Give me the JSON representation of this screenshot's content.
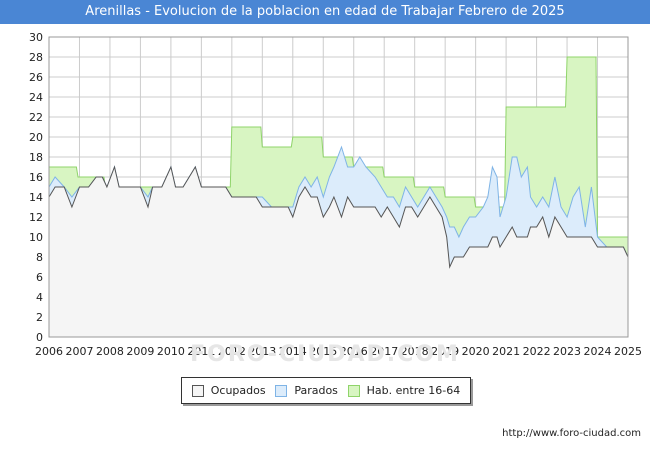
{
  "header": {
    "title": "Arenillas - Evolucion de la poblacion en edad de Trabajar Febrero de 2025"
  },
  "footer": {
    "url": "http://www.foro-ciudad.com",
    "watermark": "FORO-CIUDAD.COM"
  },
  "colors": {
    "title_bg": "#4a86d4",
    "ocupados_fill": "#f5f5f5",
    "ocupados_line": "#555555",
    "parados_fill": "#dcecfb",
    "parados_line": "#7fb4e6",
    "hab_fill": "#d8f5c2",
    "hab_line": "#8fd46a",
    "grid": "#cccccc"
  },
  "chart_data": {
    "type": "area",
    "x_start": 2006,
    "x_end": 2025,
    "step": "month",
    "ylim": [
      0,
      30
    ],
    "yticks": [
      0,
      2,
      4,
      6,
      8,
      10,
      12,
      14,
      16,
      18,
      20,
      22,
      24,
      26,
      28,
      30
    ],
    "xticks": [
      "2006",
      "2007",
      "2008",
      "2009",
      "2010",
      "2011",
      "2012",
      "2013",
      "2014",
      "2015",
      "2016",
      "2017",
      "2018",
      "2019",
      "2020",
      "2021",
      "2022",
      "2023",
      "2024",
      "2025"
    ],
    "grid": true,
    "legend_position": "bottom-center",
    "series": [
      {
        "name": "Ocupados",
        "points": [
          [
            2006.0,
            14
          ],
          [
            2006.2,
            15
          ],
          [
            2006.5,
            15
          ],
          [
            2006.75,
            13
          ],
          [
            2007.0,
            15
          ],
          [
            2007.3,
            15
          ],
          [
            2007.55,
            16
          ],
          [
            2007.75,
            16
          ],
          [
            2007.9,
            15
          ],
          [
            2008.15,
            17
          ],
          [
            2008.3,
            15
          ],
          [
            2008.6,
            15
          ],
          [
            2008.8,
            15
          ],
          [
            2009.0,
            15
          ],
          [
            2009.25,
            13
          ],
          [
            2009.4,
            15
          ],
          [
            2009.7,
            15
          ],
          [
            2010.0,
            17
          ],
          [
            2010.15,
            15
          ],
          [
            2010.4,
            15
          ],
          [
            2010.6,
            16
          ],
          [
            2010.8,
            17
          ],
          [
            2011.0,
            15
          ],
          [
            2011.3,
            15
          ],
          [
            2011.6,
            15
          ],
          [
            2011.8,
            15
          ],
          [
            2012.0,
            14
          ],
          [
            2012.3,
            14
          ],
          [
            2012.5,
            14
          ],
          [
            2012.8,
            14
          ],
          [
            2013.0,
            13
          ],
          [
            2013.3,
            13
          ],
          [
            2013.6,
            13
          ],
          [
            2013.85,
            13
          ],
          [
            2014.0,
            12
          ],
          [
            2014.2,
            14
          ],
          [
            2014.4,
            15
          ],
          [
            2014.6,
            14
          ],
          [
            2014.8,
            14
          ],
          [
            2015.0,
            12
          ],
          [
            2015.2,
            13
          ],
          [
            2015.35,
            14
          ],
          [
            2015.6,
            12
          ],
          [
            2015.8,
            14
          ],
          [
            2016.0,
            13
          ],
          [
            2016.2,
            13
          ],
          [
            2016.4,
            13
          ],
          [
            2016.7,
            13
          ],
          [
            2016.9,
            12
          ],
          [
            2017.1,
            13
          ],
          [
            2017.3,
            12
          ],
          [
            2017.5,
            11
          ],
          [
            2017.7,
            13
          ],
          [
            2017.9,
            13
          ],
          [
            2018.1,
            12
          ],
          [
            2018.3,
            13
          ],
          [
            2018.5,
            14
          ],
          [
            2018.7,
            13
          ],
          [
            2018.9,
            12
          ],
          [
            2019.05,
            10
          ],
          [
            2019.15,
            7
          ],
          [
            2019.3,
            8
          ],
          [
            2019.45,
            8
          ],
          [
            2019.6,
            8
          ],
          [
            2019.8,
            9
          ],
          [
            2020.0,
            9
          ],
          [
            2020.25,
            9
          ],
          [
            2020.4,
            9
          ],
          [
            2020.55,
            10
          ],
          [
            2020.7,
            10
          ],
          [
            2020.8,
            9
          ],
          [
            2021.0,
            10
          ],
          [
            2021.2,
            11
          ],
          [
            2021.35,
            10
          ],
          [
            2021.5,
            10
          ],
          [
            2021.7,
            10
          ],
          [
            2021.8,
            11
          ],
          [
            2022.0,
            11
          ],
          [
            2022.2,
            12
          ],
          [
            2022.4,
            10
          ],
          [
            2022.6,
            12
          ],
          [
            2022.8,
            11
          ],
          [
            2023.0,
            10
          ],
          [
            2023.2,
            10
          ],
          [
            2023.4,
            10
          ],
          [
            2023.6,
            10
          ],
          [
            2023.8,
            10
          ],
          [
            2024.0,
            9
          ],
          [
            2024.3,
            9
          ],
          [
            2024.6,
            9
          ],
          [
            2024.85,
            9
          ],
          [
            2025.0,
            8
          ]
        ]
      },
      {
        "name": "Parados",
        "points": [
          [
            2006.0,
            15
          ],
          [
            2006.2,
            16
          ],
          [
            2006.5,
            15
          ],
          [
            2006.75,
            14
          ],
          [
            2007.0,
            15
          ],
          [
            2007.3,
            15
          ],
          [
            2007.55,
            16
          ],
          [
            2007.75,
            16
          ],
          [
            2007.9,
            15
          ],
          [
            2008.15,
            17
          ],
          [
            2008.3,
            15
          ],
          [
            2008.6,
            15
          ],
          [
            2008.8,
            15
          ],
          [
            2009.0,
            15
          ],
          [
            2009.25,
            14
          ],
          [
            2009.4,
            15
          ],
          [
            2009.7,
            15
          ],
          [
            2010.0,
            17
          ],
          [
            2010.15,
            15
          ],
          [
            2010.4,
            15
          ],
          [
            2010.6,
            16
          ],
          [
            2010.8,
            17
          ],
          [
            2011.0,
            15
          ],
          [
            2011.3,
            15
          ],
          [
            2011.6,
            15
          ],
          [
            2011.8,
            15
          ],
          [
            2012.0,
            14
          ],
          [
            2012.3,
            14
          ],
          [
            2012.5,
            14
          ],
          [
            2012.8,
            14
          ],
          [
            2013.0,
            14
          ],
          [
            2013.3,
            13
          ],
          [
            2013.6,
            13
          ],
          [
            2013.85,
            13
          ],
          [
            2014.0,
            13
          ],
          [
            2014.2,
            15
          ],
          [
            2014.4,
            16
          ],
          [
            2014.6,
            15
          ],
          [
            2014.8,
            16
          ],
          [
            2015.0,
            14
          ],
          [
            2015.2,
            16
          ],
          [
            2015.35,
            17
          ],
          [
            2015.6,
            19
          ],
          [
            2015.8,
            17
          ],
          [
            2016.0,
            17
          ],
          [
            2016.2,
            18
          ],
          [
            2016.4,
            17
          ],
          [
            2016.7,
            16
          ],
          [
            2016.9,
            15
          ],
          [
            2017.1,
            14
          ],
          [
            2017.3,
            14
          ],
          [
            2017.5,
            13
          ],
          [
            2017.7,
            15
          ],
          [
            2017.9,
            14
          ],
          [
            2018.1,
            13
          ],
          [
            2018.3,
            14
          ],
          [
            2018.5,
            15
          ],
          [
            2018.7,
            14
          ],
          [
            2018.9,
            13
          ],
          [
            2019.05,
            12
          ],
          [
            2019.15,
            11
          ],
          [
            2019.3,
            11
          ],
          [
            2019.45,
            10
          ],
          [
            2019.6,
            11
          ],
          [
            2019.8,
            12
          ],
          [
            2020.0,
            12
          ],
          [
            2020.25,
            13
          ],
          [
            2020.4,
            14
          ],
          [
            2020.55,
            17
          ],
          [
            2020.7,
            16
          ],
          [
            2020.8,
            12
          ],
          [
            2021.0,
            14
          ],
          [
            2021.2,
            18
          ],
          [
            2021.35,
            18
          ],
          [
            2021.5,
            16
          ],
          [
            2021.7,
            17
          ],
          [
            2021.8,
            14
          ],
          [
            2022.0,
            13
          ],
          [
            2022.2,
            14
          ],
          [
            2022.4,
            13
          ],
          [
            2022.6,
            16
          ],
          [
            2022.8,
            13
          ],
          [
            2023.0,
            12
          ],
          [
            2023.2,
            14
          ],
          [
            2023.4,
            15
          ],
          [
            2023.6,
            11
          ],
          [
            2023.8,
            15
          ],
          [
            2024.0,
            10
          ],
          [
            2024.3,
            9
          ],
          [
            2024.6,
            9
          ],
          [
            2024.85,
            9
          ],
          [
            2025.0,
            8
          ]
        ]
      },
      {
        "name": "Hab. entre 16-64",
        "points": [
          [
            2006.0,
            17
          ],
          [
            2006.9,
            17
          ],
          [
            2006.95,
            16
          ],
          [
            2007.8,
            16
          ],
          [
            2007.85,
            15
          ],
          [
            2011.95,
            15
          ],
          [
            2012.0,
            21
          ],
          [
            2012.95,
            21
          ],
          [
            2013.0,
            19
          ],
          [
            2013.95,
            19
          ],
          [
            2014.0,
            20
          ],
          [
            2014.95,
            20
          ],
          [
            2015.0,
            18
          ],
          [
            2015.95,
            18
          ],
          [
            2016.0,
            17
          ],
          [
            2016.95,
            17
          ],
          [
            2017.0,
            16
          ],
          [
            2017.95,
            16
          ],
          [
            2018.0,
            15
          ],
          [
            2018.95,
            15
          ],
          [
            2019.0,
            14
          ],
          [
            2019.95,
            14
          ],
          [
            2020.0,
            13
          ],
          [
            2020.95,
            13
          ],
          [
            2021.0,
            23
          ],
          [
            2022.95,
            23
          ],
          [
            2023.0,
            28
          ],
          [
            2023.95,
            28
          ],
          [
            2024.0,
            10
          ],
          [
            2025.0,
            10
          ]
        ]
      }
    ]
  },
  "legend": [
    "Ocupados",
    "Parados",
    "Hab. entre 16-64"
  ]
}
